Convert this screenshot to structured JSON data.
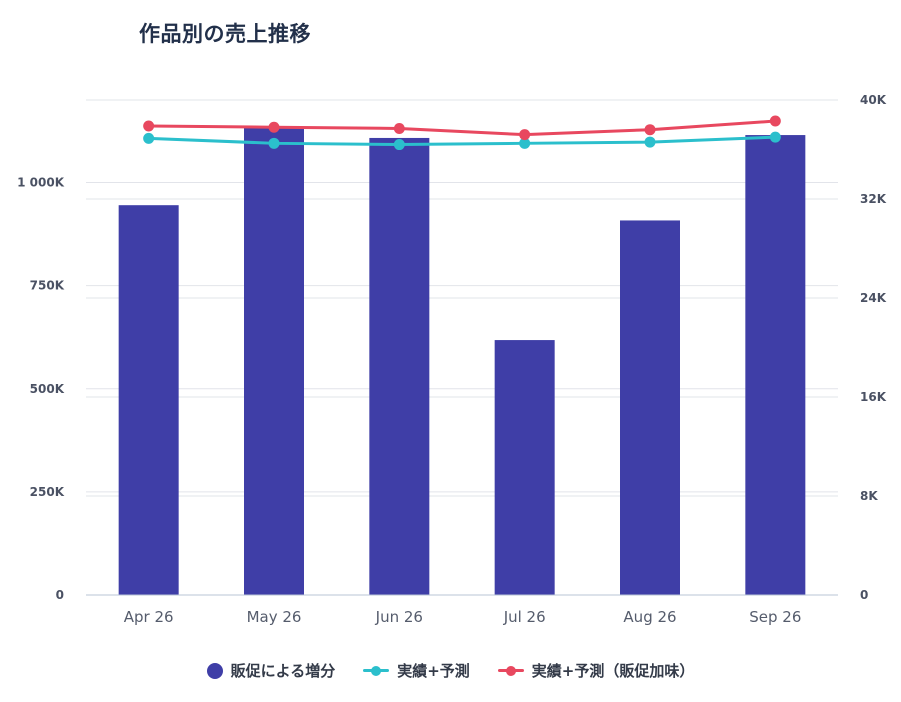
{
  "chart_data": {
    "type": "bar",
    "title": "作品別の売上推移",
    "categories": [
      "Apr 26",
      "May 26",
      "Jun 26",
      "Jul 26",
      "Aug 26",
      "Sep 26"
    ],
    "y_left": {
      "ticks": [
        "0",
        "250K",
        "500K",
        "750K",
        "1 000K"
      ],
      "tick_values": [
        0,
        250000,
        500000,
        750000,
        1000000
      ],
      "range": [
        0,
        1200000
      ]
    },
    "y_right": {
      "ticks": [
        "0",
        "8K",
        "16K",
        "24K",
        "32K",
        "40K"
      ],
      "tick_values": [
        0,
        8000,
        16000,
        24000,
        32000,
        40000
      ],
      "range": [
        0,
        40000
      ]
    },
    "series": [
      {
        "name": "販促による増分",
        "kind": "bar",
        "axis": "left",
        "color": "#3f3ea7",
        "values": [
          945000,
          1135000,
          1108000,
          618000,
          908000,
          1115000
        ]
      },
      {
        "name": "実績+予測",
        "kind": "line",
        "axis": "right",
        "color": "#2bbfcc",
        "values": [
          36900,
          36500,
          36400,
          36500,
          36600,
          37000
        ]
      },
      {
        "name": "実績+予測（販促加味）",
        "kind": "line",
        "axis": "right",
        "color": "#e8485f",
        "values": [
          37900,
          37800,
          37700,
          37200,
          37600,
          38300
        ]
      }
    ],
    "grid": true,
    "legend_position": "bottom"
  }
}
